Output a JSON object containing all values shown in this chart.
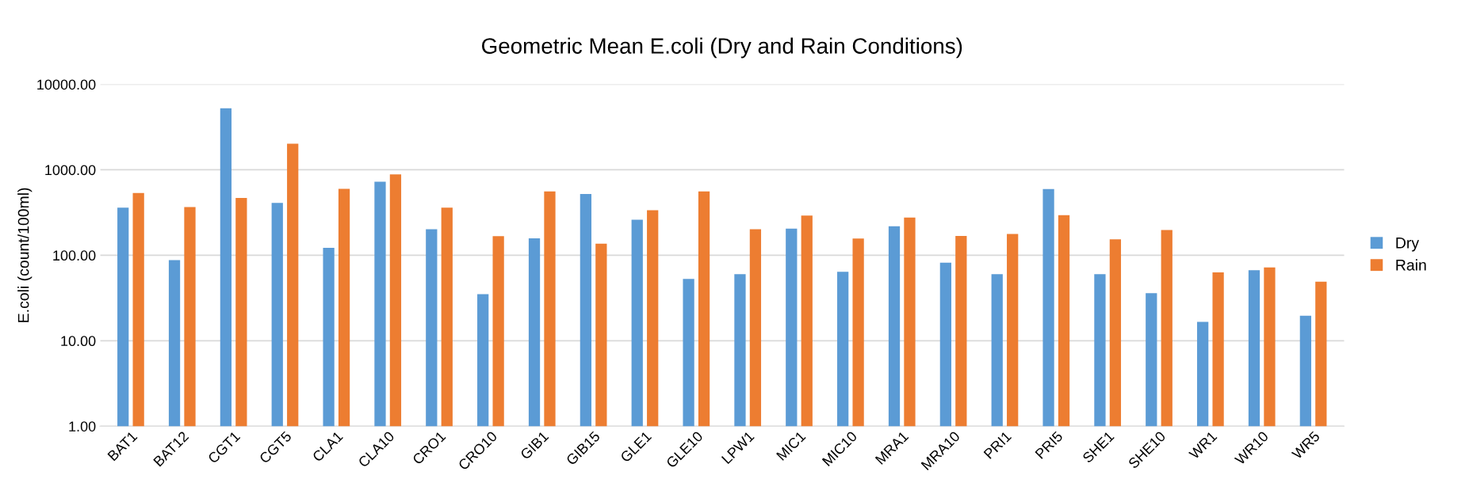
{
  "chart_data": {
    "type": "bar",
    "title": "Geometric Mean E.coli (Dry and Rain Conditions)",
    "ylabel": "E.coli (count/100ml)",
    "categories": [
      "BAT1",
      "BAT12",
      "CGT1",
      "CGT5",
      "CLA1",
      "CLA10",
      "CRO1",
      "CRO10",
      "GIB1",
      "GIB15",
      "GLE1",
      "GLE10",
      "LPW1",
      "MIC1",
      "MIC10",
      "MRA1",
      "MRA10",
      "PRI1",
      "PRI5",
      "SHE1",
      "SHE10",
      "WR1",
      "WR10",
      "WR5"
    ],
    "series": [
      {
        "name": "Dry",
        "color": "#5b9bd5",
        "values": [
          360,
          88,
          5250,
          410,
          122,
          725,
          202,
          35,
          158,
          522,
          261,
          53,
          60,
          205,
          64,
          219,
          82,
          60,
          597,
          60,
          36,
          16.6,
          67,
          19.6
        ]
      },
      {
        "name": "Rain",
        "color": "#ed7d31",
        "values": [
          535,
          366,
          469,
          2020,
          600,
          885,
          360,
          167,
          560,
          137,
          336,
          560,
          202,
          292,
          157,
          277,
          168,
          177,
          295,
          154,
          197,
          63,
          72,
          49
        ]
      }
    ],
    "log": true,
    "ylim": [
      1,
      10000
    ],
    "yticks": [
      {
        "value": 1,
        "label": "1.00"
      },
      {
        "value": 10,
        "label": "10.00"
      },
      {
        "value": 100,
        "label": "100.00"
      },
      {
        "value": 1000,
        "label": "1000.00"
      },
      {
        "value": 10000,
        "label": "10000.00"
      }
    ],
    "grid": "y",
    "legend": "right"
  }
}
